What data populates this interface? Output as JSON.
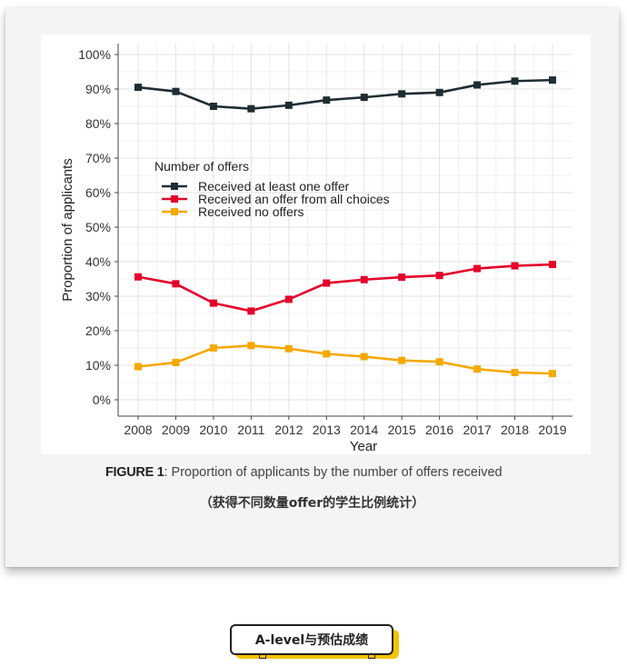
{
  "chart_data": {
    "type": "line",
    "title": "",
    "xlabel": "Year",
    "ylabel": "Proportion of applicants",
    "ylim": [
      0,
      100
    ],
    "yticks": [
      "0%",
      "10%",
      "20%",
      "30%",
      "40%",
      "50%",
      "60%",
      "70%",
      "80%",
      "90%",
      "100%"
    ],
    "ytick_values": [
      0,
      10,
      20,
      30,
      40,
      50,
      60,
      70,
      80,
      90,
      100
    ],
    "categories": [
      "2008",
      "2009",
      "2010",
      "2011",
      "2012",
      "2013",
      "2014",
      "2015",
      "2016",
      "2017",
      "2018",
      "2019"
    ],
    "legend": {
      "title": "Number of offers",
      "placement": "upper-left inside plot"
    },
    "grid": true,
    "series": [
      {
        "name": "Received at least one offer",
        "color": "#1f2d33",
        "values": [
          90.5,
          89.3,
          85.0,
          84.3,
          85.3,
          86.8,
          87.6,
          88.6,
          89.0,
          91.2,
          92.3,
          92.6
        ]
      },
      {
        "name": "Received an offer from all choices",
        "color": "#e4002b",
        "values": [
          35.6,
          33.6,
          28.0,
          25.7,
          29.1,
          33.8,
          34.8,
          35.5,
          36.0,
          38.0,
          38.8,
          39.2
        ]
      },
      {
        "name": "Received no offers",
        "color": "#f5a800",
        "values": [
          9.6,
          10.8,
          15.0,
          15.7,
          14.8,
          13.3,
          12.5,
          11.4,
          11.0,
          8.9,
          7.9,
          7.6
        ]
      }
    ]
  },
  "caption": {
    "label": "FIGURE 1",
    "text": ": Proportion of applicants by the number of offers received"
  },
  "subcaption": "（获得不同数量offer的学生比例统计）",
  "tag": {
    "label": "A-level与预估成绩"
  }
}
